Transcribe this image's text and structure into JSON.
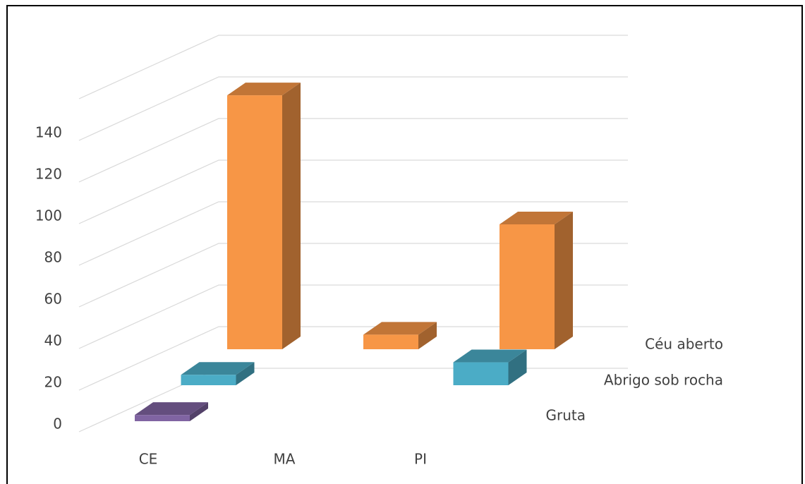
{
  "chart_data": {
    "type": "bar3d",
    "categories": [
      "CE",
      "MA",
      "PI"
    ],
    "series": [
      {
        "name": "Gruta",
        "color": "#8064a2",
        "values": [
          3,
          0,
          0
        ]
      },
      {
        "name": "Abrigo sob rocha",
        "color": "#4bacc6",
        "values": [
          5,
          0,
          11
        ]
      },
      {
        "name": "Céu aberto",
        "color": "#f79646",
        "values": [
          122,
          7,
          60
        ]
      }
    ],
    "ylim": [
      0,
      160
    ],
    "yticks": [
      0,
      20,
      40,
      60,
      80,
      100,
      120,
      140
    ],
    "grid": true
  }
}
